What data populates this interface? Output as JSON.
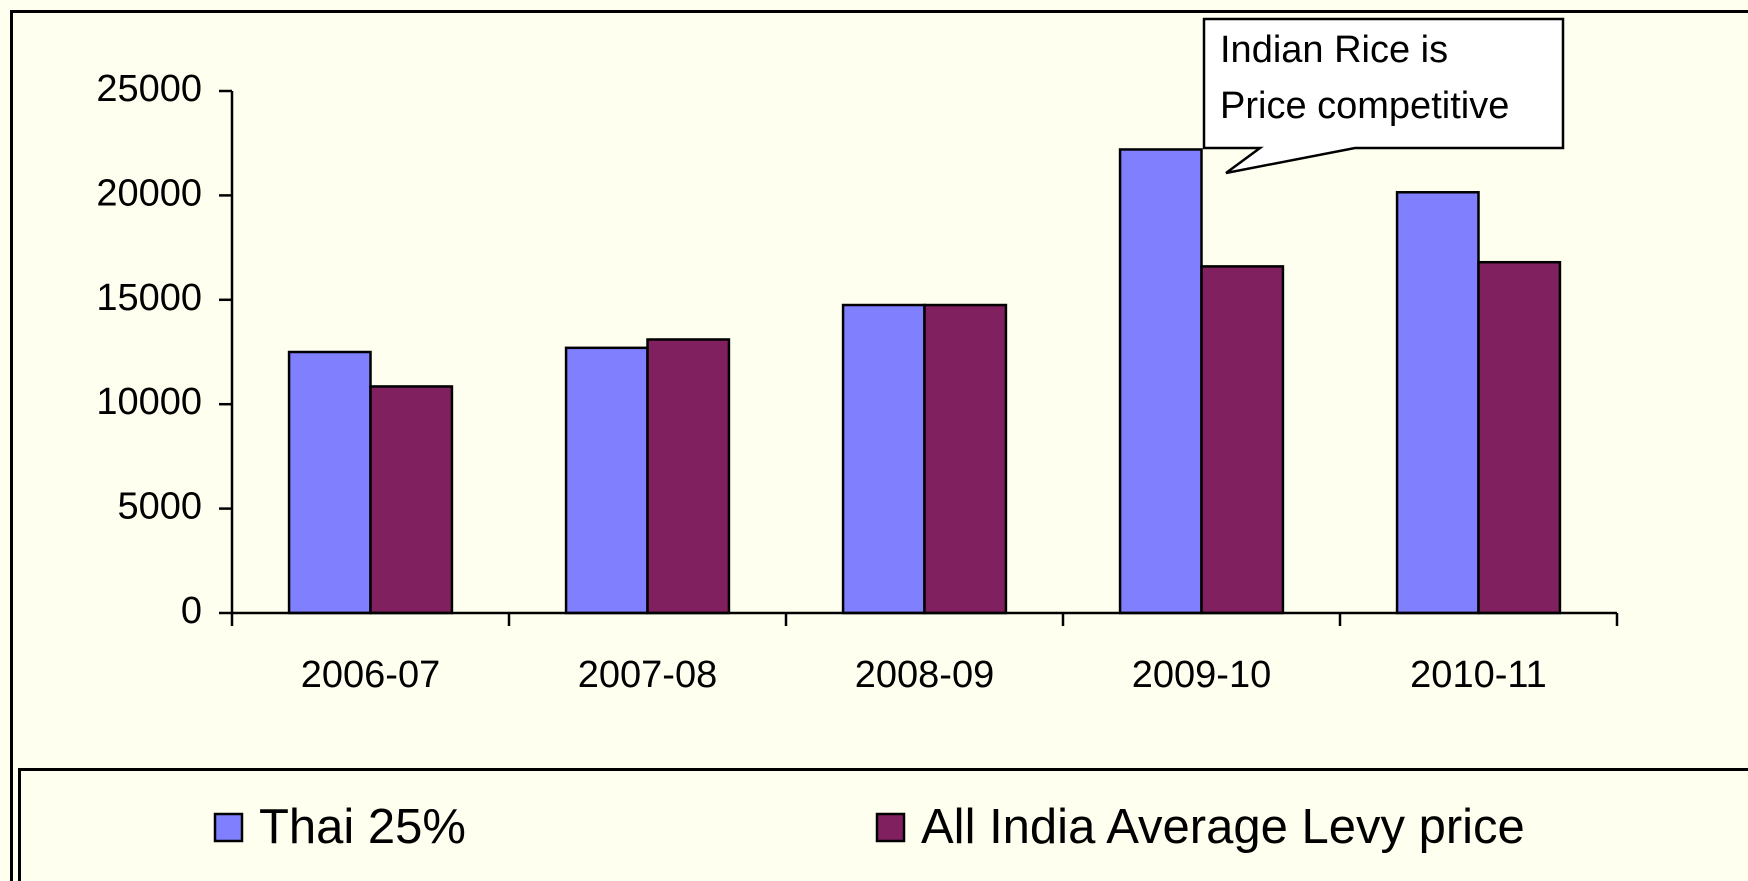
{
  "chart_data": {
    "type": "bar",
    "categories": [
      "2006-07",
      "2007-08",
      "2008-09",
      "2009-10",
      "2010-11"
    ],
    "series": [
      {
        "name": "Thai 25%",
        "color": "#8080ff",
        "values": [
          12500,
          12700,
          14750,
          22200,
          20150
        ]
      },
      {
        "name": "All India Average Levy price",
        "color": "#80205f",
        "values": [
          10850,
          13100,
          14750,
          16600,
          16800
        ]
      }
    ],
    "ylim": [
      0,
      25000
    ],
    "yticks": [
      0,
      5000,
      10000,
      15000,
      20000,
      25000
    ],
    "legend": "bottom",
    "annotation": [
      "Indian Rice is",
      "Price competitive"
    ]
  }
}
